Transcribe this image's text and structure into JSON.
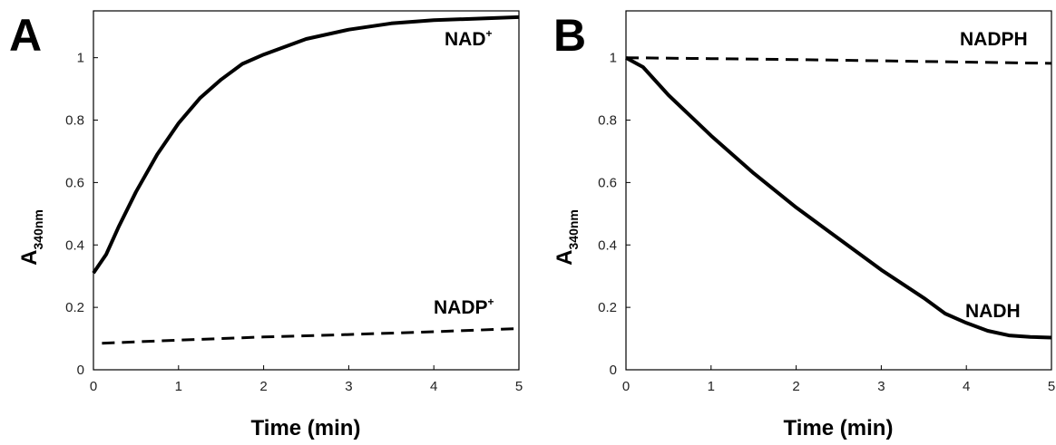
{
  "chart_data": [
    {
      "type": "line",
      "panel_label": "A",
      "xlabel": "Time (min)",
      "ylabel_main": "A",
      "ylabel_sub": "340nm",
      "xlim": [
        0,
        5
      ],
      "ylim": [
        0,
        1.15
      ],
      "xticks": [
        0,
        1,
        2,
        3,
        4,
        5
      ],
      "yticks": [
        0,
        0.2,
        0.4,
        0.6,
        0.8,
        1
      ],
      "ytick_labels": [
        "0",
        "0.2",
        "0.4",
        "0.6",
        "0.8",
        "1"
      ],
      "xtick_labels": [
        "0",
        "1",
        "2",
        "3",
        "4",
        "5"
      ],
      "series": [
        {
          "name": "NAD",
          "name_sup": "+",
          "style": "solid",
          "x": [
            0,
            0.15,
            0.3,
            0.5,
            0.75,
            1.0,
            1.25,
            1.5,
            1.75,
            2.0,
            2.5,
            3.0,
            3.5,
            4.0,
            4.5,
            5.0
          ],
          "y": [
            0.31,
            0.37,
            0.46,
            0.57,
            0.69,
            0.79,
            0.87,
            0.93,
            0.98,
            1.01,
            1.06,
            1.09,
            1.11,
            1.12,
            1.125,
            1.13
          ]
        },
        {
          "name": "NADP",
          "name_sup": "+",
          "style": "dashed",
          "x": [
            0.1,
            1,
            2,
            3,
            4,
            5
          ],
          "y": [
            0.085,
            0.095,
            0.105,
            0.113,
            0.122,
            0.132
          ]
        }
      ]
    },
    {
      "type": "line",
      "panel_label": "B",
      "xlabel": "Time (min)",
      "ylabel_main": "A",
      "ylabel_sub": "340nm",
      "xlim": [
        0,
        5
      ],
      "ylim": [
        0,
        1.15
      ],
      "xticks": [
        0,
        1,
        2,
        3,
        4,
        5
      ],
      "yticks": [
        0,
        0.2,
        0.4,
        0.6,
        0.8,
        1
      ],
      "ytick_labels": [
        "0",
        "0.2",
        "0.4",
        "0.6",
        "0.8",
        "1"
      ],
      "xtick_labels": [
        "0",
        "1",
        "2",
        "3",
        "4",
        "5"
      ],
      "series": [
        {
          "name": "NADPH",
          "name_sup": "",
          "style": "dashed",
          "x": [
            0,
            1,
            2,
            3,
            4,
            5
          ],
          "y": [
            1.0,
            0.997,
            0.994,
            0.99,
            0.986,
            0.982
          ]
        },
        {
          "name": "NADH",
          "name_sup": "",
          "style": "solid",
          "x": [
            0,
            0.2,
            0.5,
            1.0,
            1.5,
            2.0,
            2.5,
            3.0,
            3.5,
            3.75,
            4.0,
            4.25,
            4.5,
            4.75,
            5.0
          ],
          "y": [
            1.0,
            0.97,
            0.88,
            0.75,
            0.63,
            0.52,
            0.42,
            0.32,
            0.23,
            0.18,
            0.15,
            0.125,
            0.11,
            0.105,
            0.103
          ]
        }
      ]
    }
  ]
}
